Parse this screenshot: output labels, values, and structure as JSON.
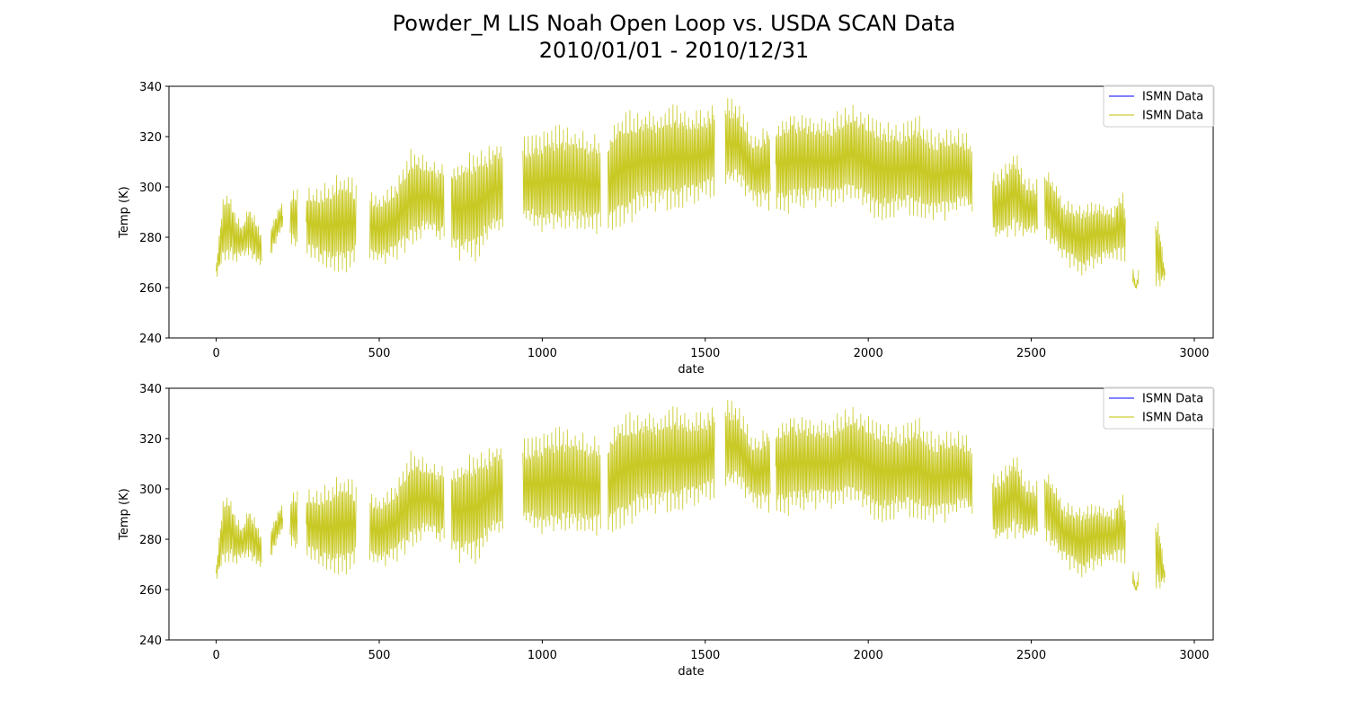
{
  "figure": {
    "title_line1": "Powder_M LIS Noah Open Loop vs. USDA SCAN Data",
    "title_line2": "2010/01/01 - 2010/12/31"
  },
  "colors": {
    "series_blue": "#0000ff",
    "series_olive": "#bfbf00",
    "axes": "#000000",
    "legend_border": "#cccccc"
  },
  "chart_data": [
    {
      "type": "line",
      "title": "",
      "xlabel": "date",
      "ylabel": "Temp (K)",
      "xlim": [
        -145,
        3058
      ],
      "ylim": [
        240,
        340
      ],
      "xticks": [
        0,
        500,
        1000,
        1500,
        2000,
        2500,
        3000
      ],
      "yticks": [
        240,
        260,
        280,
        300,
        320,
        340
      ],
      "grid": false,
      "legend_placement": "top-right",
      "series": [
        {
          "name": "ISMN Data",
          "color": "#0000ff",
          "x": [],
          "y": []
        },
        {
          "name": "ISMN Data",
          "color": "#bfbf00",
          "envelope": {
            "x": [
              0,
              20,
              40,
              60,
              80,
              100,
              150,
              200,
              250,
              300,
              350,
              400,
              450,
              500,
              550,
              600,
              650,
              700,
              750,
              800,
              850,
              900,
              950,
              1000,
              1050,
              1100,
              1150,
              1200,
              1250,
              1300,
              1350,
              1400,
              1450,
              1500,
              1550,
              1600,
              1650,
              1700,
              1750,
              1800,
              1850,
              1900,
              1950,
              2000,
              2050,
              2100,
              2150,
              2200,
              2250,
              2300,
              2390,
              2420,
              2450,
              2480,
              2510,
              2550,
              2600,
              2650,
              2700,
              2750,
              2780,
              2820,
              2860,
              2890,
              2910
            ],
            "low": [
              263,
              268,
              270,
              269,
              272,
              271,
              267,
              282,
              274,
              270,
              265,
              266,
              272,
              268,
              270,
              275,
              280,
              276,
              270,
              270,
              280,
              280,
              283,
              281,
              281,
              281,
              280,
              281,
              284,
              288,
              290,
              290,
              292,
              294,
              298,
              299,
              292,
              290,
              289,
              290,
              292,
              290,
              293,
              288,
              286,
              289,
              286,
              286,
              286,
              290,
              277,
              279,
              280,
              279,
              280,
              277,
              270,
              264,
              267,
              271,
              270,
              259,
              265,
              258,
              263
            ],
            "high": [
              270,
              296,
              300,
              290,
              285,
              294,
              280,
              295,
              300,
              300,
              304,
              306,
              300,
              298,
              303,
              316,
              312,
              310,
              312,
              316,
              318,
              322,
              320,
              323,
              325,
              324,
              322,
              322,
              332,
              332,
              331,
              333,
              331,
              331,
              338,
              334,
              320,
              327,
              331,
              331,
              328,
              330,
              334,
              330,
              328,
              325,
              330,
              322,
              325,
              322,
              306,
              310,
              316,
              305,
              302,
              309,
              295,
              294,
              296,
              292,
              301,
              261,
              288,
              290,
              267
            ]
          },
          "gaps": [
            [
              140,
              165
            ],
            [
              205,
              225
            ],
            [
              250,
              275
            ],
            [
              430,
              470
            ],
            [
              700,
              720
            ],
            [
              880,
              940
            ],
            [
              1180,
              1200
            ],
            [
              1530,
              1560
            ],
            [
              1700,
              1715
            ],
            [
              2320,
              2380
            ],
            [
              2520,
              2540
            ],
            [
              2790,
              2810
            ],
            [
              2830,
              2880
            ]
          ]
        }
      ]
    },
    {
      "type": "line",
      "title": "",
      "xlabel": "date",
      "ylabel": "Temp (K)",
      "xlim": [
        -145,
        3058
      ],
      "ylim": [
        240,
        340
      ],
      "xticks": [
        0,
        500,
        1000,
        1500,
        2000,
        2500,
        3000
      ],
      "yticks": [
        240,
        260,
        280,
        300,
        320,
        340
      ],
      "grid": false,
      "legend_placement": "top-right",
      "series": [
        {
          "name": "ISMN Data",
          "color": "#0000ff",
          "x": [],
          "y": []
        },
        {
          "name": "ISMN Data",
          "color": "#bfbf00",
          "envelope": {
            "x": [
              0,
              20,
              40,
              60,
              80,
              100,
              150,
              200,
              250,
              300,
              350,
              400,
              450,
              500,
              550,
              600,
              650,
              700,
              750,
              800,
              850,
              900,
              950,
              1000,
              1050,
              1100,
              1150,
              1200,
              1250,
              1300,
              1350,
              1400,
              1450,
              1500,
              1550,
              1600,
              1650,
              1700,
              1750,
              1800,
              1850,
              1900,
              1950,
              2000,
              2050,
              2100,
              2150,
              2200,
              2250,
              2300,
              2390,
              2420,
              2450,
              2480,
              2510,
              2550,
              2600,
              2650,
              2700,
              2750,
              2780,
              2820,
              2860,
              2890,
              2910
            ],
            "low": [
              263,
              268,
              270,
              269,
              272,
              271,
              267,
              282,
              274,
              270,
              265,
              266,
              272,
              268,
              270,
              275,
              280,
              276,
              270,
              270,
              280,
              280,
              283,
              281,
              281,
              281,
              280,
              281,
              284,
              288,
              290,
              290,
              292,
              294,
              298,
              299,
              292,
              290,
              289,
              290,
              292,
              290,
              293,
              288,
              286,
              289,
              286,
              286,
              286,
              290,
              277,
              279,
              280,
              279,
              280,
              277,
              270,
              264,
              267,
              271,
              270,
              259,
              265,
              258,
              263
            ],
            "high": [
              270,
              296,
              300,
              290,
              285,
              294,
              280,
              295,
              300,
              300,
              304,
              306,
              300,
              298,
              303,
              316,
              312,
              310,
              312,
              316,
              318,
              322,
              320,
              323,
              325,
              324,
              322,
              322,
              332,
              332,
              331,
              333,
              331,
              331,
              338,
              334,
              320,
              327,
              331,
              331,
              328,
              330,
              334,
              330,
              328,
              325,
              330,
              322,
              325,
              322,
              306,
              310,
              316,
              305,
              302,
              309,
              295,
              294,
              296,
              292,
              301,
              261,
              288,
              290,
              267
            ]
          },
          "gaps": [
            [
              140,
              165
            ],
            [
              205,
              225
            ],
            [
              250,
              275
            ],
            [
              430,
              470
            ],
            [
              700,
              720
            ],
            [
              880,
              940
            ],
            [
              1180,
              1200
            ],
            [
              1530,
              1560
            ],
            [
              1700,
              1715
            ],
            [
              2320,
              2380
            ],
            [
              2520,
              2540
            ],
            [
              2790,
              2810
            ],
            [
              2830,
              2880
            ]
          ]
        }
      ]
    }
  ]
}
